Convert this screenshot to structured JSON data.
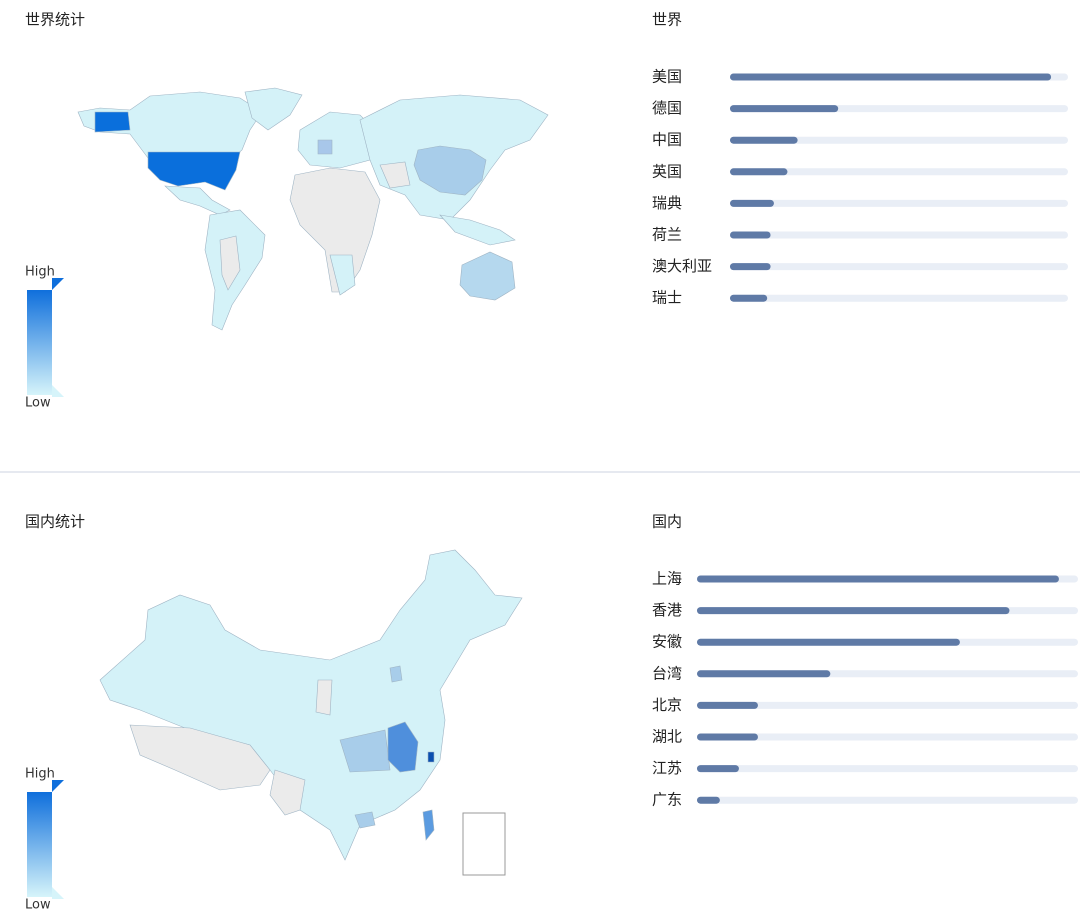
{
  "world": {
    "title": "世界统计",
    "legend": {
      "high": "High",
      "low": "Low"
    },
    "ranking": {
      "type": "bar",
      "title": "世界",
      "categories": [
        "美国",
        "德国",
        "中国",
        "英国",
        "瑞典",
        "荷兰",
        "澳大利亚",
        "瑞士"
      ],
      "values": [
        95,
        32,
        20,
        17,
        13,
        12,
        12,
        11
      ],
      "xlim": [
        0,
        100
      ],
      "color": "#5f7aa6",
      "track_color": "#e9eef6"
    }
  },
  "domestic": {
    "title": "国内统计",
    "legend": {
      "high": "High",
      "low": "Low"
    },
    "ranking": {
      "type": "bar",
      "title": "国内",
      "categories": [
        "上海",
        "香港",
        "安徽",
        "台湾",
        "北京",
        "湖北",
        "江苏",
        "广东"
      ],
      "values": [
        95,
        82,
        69,
        35,
        16,
        16,
        11,
        6
      ],
      "xlim": [
        0,
        100
      ],
      "color": "#5f7aa6",
      "track_color": "#e9eef6"
    }
  }
}
